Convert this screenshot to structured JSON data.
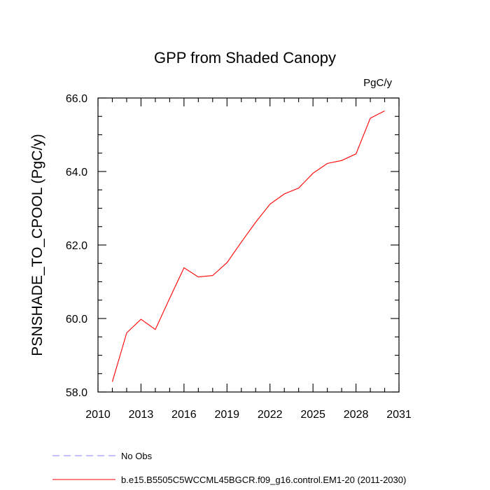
{
  "chart_data": {
    "type": "line",
    "title": "GPP from Shaded Canopy",
    "units_label": "PgC/y",
    "ylabel": "PSNSHADE_TO_CPOOL  (PgC/y)",
    "xlabel": "",
    "xlim": [
      2010,
      2031
    ],
    "ylim": [
      58.0,
      66.0
    ],
    "x_ticks": [
      "2010",
      "2013",
      "2016",
      "2019",
      "2022",
      "2025",
      "2028",
      "2031"
    ],
    "y_ticks": [
      "58.0",
      "60.0",
      "62.0",
      "64.0",
      "66.0"
    ],
    "grid": false,
    "series": [
      {
        "name": "b.e15.B5505C5WCCML45BGCR.f09_g16.control.EM1-20 (2011-2030)",
        "color": "#ff0000",
        "dash": "solid",
        "x": [
          2011,
          2012,
          2013,
          2014,
          2015,
          2016,
          2017,
          2018,
          2019,
          2020,
          2021,
          2022,
          2023,
          2024,
          2025,
          2026,
          2027,
          2028,
          2029,
          2030
        ],
        "y": [
          58.28,
          59.61,
          59.98,
          59.7,
          60.55,
          61.38,
          61.13,
          61.17,
          61.52,
          62.08,
          62.62,
          63.11,
          63.39,
          63.55,
          63.95,
          64.22,
          64.3,
          64.48,
          65.45,
          65.65
        ]
      }
    ],
    "legend": {
      "placement": "bottom-left",
      "entries": [
        {
          "label": "No Obs",
          "color": "#8080ff",
          "dash": "dashed"
        },
        {
          "label": "b.e15.B5505C5WCCML45BGCR.f09_g16.control.EM1-20 (2011-2030)",
          "color": "#ff0000",
          "dash": "solid"
        }
      ]
    }
  }
}
